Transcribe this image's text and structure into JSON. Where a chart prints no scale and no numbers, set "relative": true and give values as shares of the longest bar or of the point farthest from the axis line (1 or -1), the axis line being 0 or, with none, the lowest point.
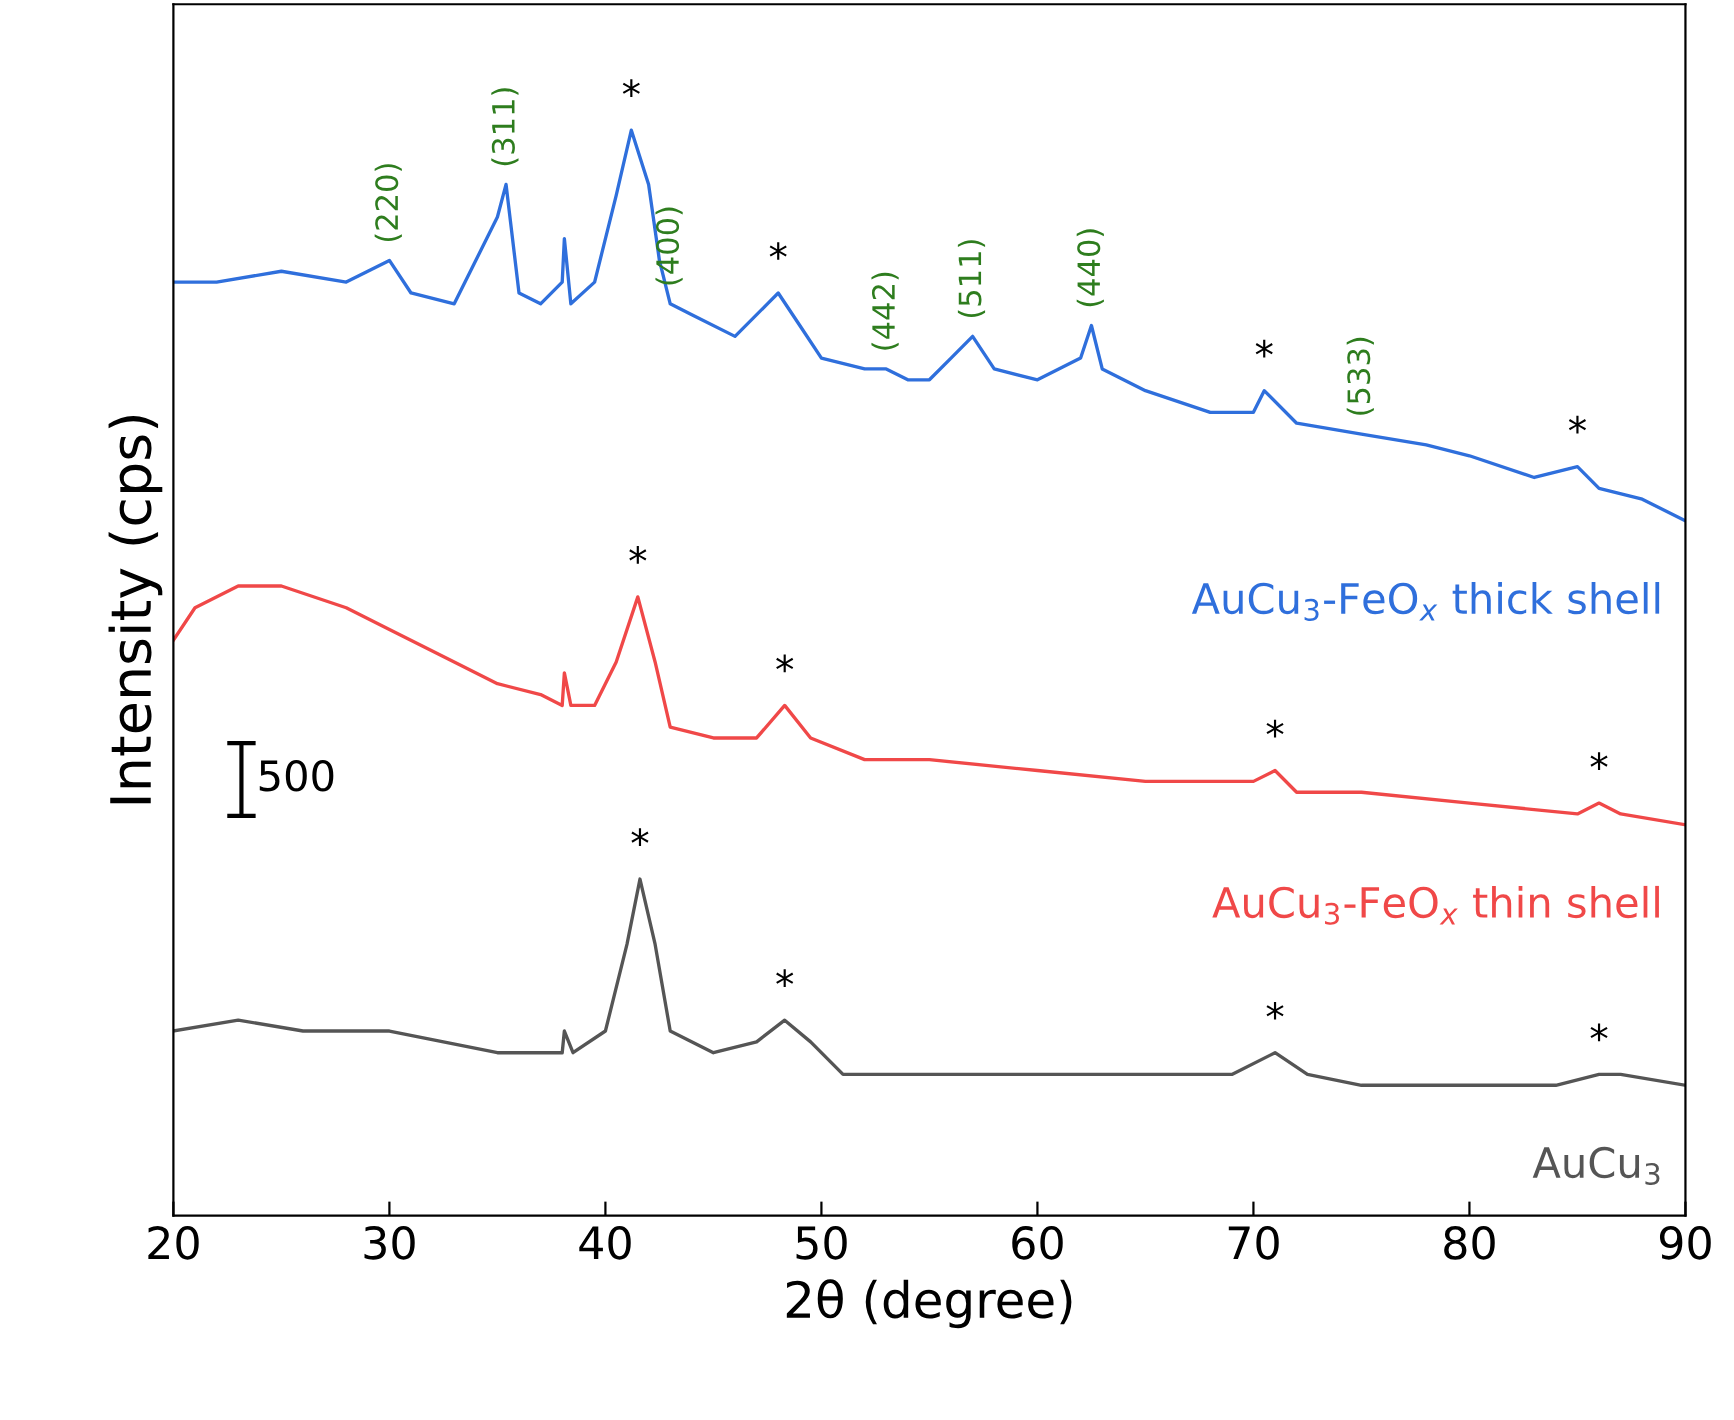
{
  "chart_data": {
    "type": "line",
    "relative": true,
    "xlabel": "2θ (degree)",
    "ylabel": "Intensity (cps)",
    "xlim": [
      20,
      90
    ],
    "xticks": [
      20,
      30,
      40,
      50,
      60,
      70,
      80,
      90
    ],
    "tick_labels": "x",
    "grid": false,
    "legend": false,
    "marker": "none",
    "line_style": "solid",
    "series": [
      {
        "name": "AuCu$_{3}$-FeO$_{x}$ thick shell",
        "color": "#2f6fdc",
        "x": [
          20,
          22,
          25,
          28,
          30,
          31,
          33,
          35,
          35.4,
          36,
          37,
          38,
          38.1,
          38.4,
          39.5,
          40.5,
          41.2,
          42,
          42.5,
          43,
          44,
          46,
          47.5,
          48,
          49,
          50,
          52,
          53,
          54,
          55,
          56,
          57,
          58,
          60,
          62,
          62.5,
          63,
          65,
          68,
          70,
          70.5,
          72,
          75,
          78,
          80,
          83,
          85,
          86,
          88,
          90
        ],
        "values": [
          0.86,
          0.86,
          0.87,
          0.86,
          0.88,
          0.85,
          0.84,
          0.92,
          0.95,
          0.85,
          0.84,
          0.86,
          0.9,
          0.84,
          0.86,
          0.94,
          1,
          0.95,
          0.88,
          0.84,
          0.83,
          0.81,
          0.84,
          0.85,
          0.82,
          0.79,
          0.78,
          0.78,
          0.77,
          0.77,
          0.79,
          0.81,
          0.78,
          0.77,
          0.79,
          0.82,
          0.78,
          0.76,
          0.74,
          0.74,
          0.76,
          0.73,
          0.72,
          0.71,
          0.7,
          0.68,
          0.69,
          0.67,
          0.66,
          0.64
        ]
      },
      {
        "name": "AuCu$_{3}$-FeO$_{x}$ thin shell",
        "color": "#f04848",
        "x": [
          20,
          21,
          23,
          25,
          28,
          30,
          33,
          35,
          37,
          38,
          38.1,
          38.4,
          39.5,
          40.5,
          41.5,
          42.3,
          43,
          45,
          47,
          48.3,
          49.5,
          52,
          55,
          60,
          65,
          70,
          71,
          72,
          75,
          80,
          85,
          86,
          87,
          90
        ],
        "values": [
          0.53,
          0.56,
          0.58,
          0.58,
          0.56,
          0.54,
          0.51,
          0.49,
          0.48,
          0.47,
          0.5,
          0.47,
          0.47,
          0.51,
          0.57,
          0.51,
          0.45,
          0.44,
          0.44,
          0.47,
          0.44,
          0.42,
          0.42,
          0.41,
          0.4,
          0.4,
          0.41,
          0.39,
          0.39,
          0.38,
          0.37,
          0.38,
          0.37,
          0.36
        ]
      },
      {
        "name": "AuCu$_{3}$",
        "color": "#555555",
        "x": [
          20,
          23,
          26,
          30,
          35,
          38,
          38.1,
          38.5,
          40,
          41,
          41.6,
          42.3,
          43,
          45,
          47,
          48.3,
          49.5,
          51,
          55,
          60,
          65,
          69,
          71,
          72.5,
          75,
          80,
          84,
          86,
          87,
          90
        ],
        "values": [
          0.17,
          0.18,
          0.17,
          0.17,
          0.15,
          0.15,
          0.17,
          0.15,
          0.17,
          0.25,
          0.31,
          0.25,
          0.17,
          0.15,
          0.16,
          0.18,
          0.16,
          0.13,
          0.13,
          0.13,
          0.13,
          0.13,
          0.15,
          0.13,
          0.12,
          0.12,
          0.12,
          0.13,
          0.13,
          0.12
        ]
      }
    ],
    "annotations": [
      {
        "text": "(220)",
        "x": 30,
        "y": 0.88
      },
      {
        "text": "(311)",
        "x": 35.4,
        "y": 0.95
      },
      {
        "text": "(400)",
        "x": 43,
        "y": 0.84
      },
      {
        "text": "(442)",
        "x": 53,
        "y": 0.78
      },
      {
        "text": "(511)",
        "x": 57,
        "y": 0.81
      },
      {
        "text": "(440)",
        "x": 62.5,
        "y": 0.82
      },
      {
        "text": "(533)",
        "x": 75,
        "y": 0.72
      },
      {
        "text": "*",
        "x": 41.2,
        "y": 1
      },
      {
        "text": "*",
        "x": 48,
        "y": 0.85
      },
      {
        "text": "*",
        "x": 70.5,
        "y": 0.76
      },
      {
        "text": "*",
        "x": 85,
        "y": 0.69
      },
      {
        "text": "*",
        "x": 41.5,
        "y": 0.57
      },
      {
        "text": "*",
        "x": 48.3,
        "y": 0.47
      },
      {
        "text": "*",
        "x": 71,
        "y": 0.41
      },
      {
        "text": "*",
        "x": 86,
        "y": 0.38
      },
      {
        "text": "*",
        "x": 41.6,
        "y": 0.31
      },
      {
        "text": "*",
        "x": 48.3,
        "y": 0.18
      },
      {
        "text": "*",
        "x": 71,
        "y": 0.15
      },
      {
        "text": "*",
        "x": 86,
        "y": 0.13
      },
      "500"
    ]
  }
}
